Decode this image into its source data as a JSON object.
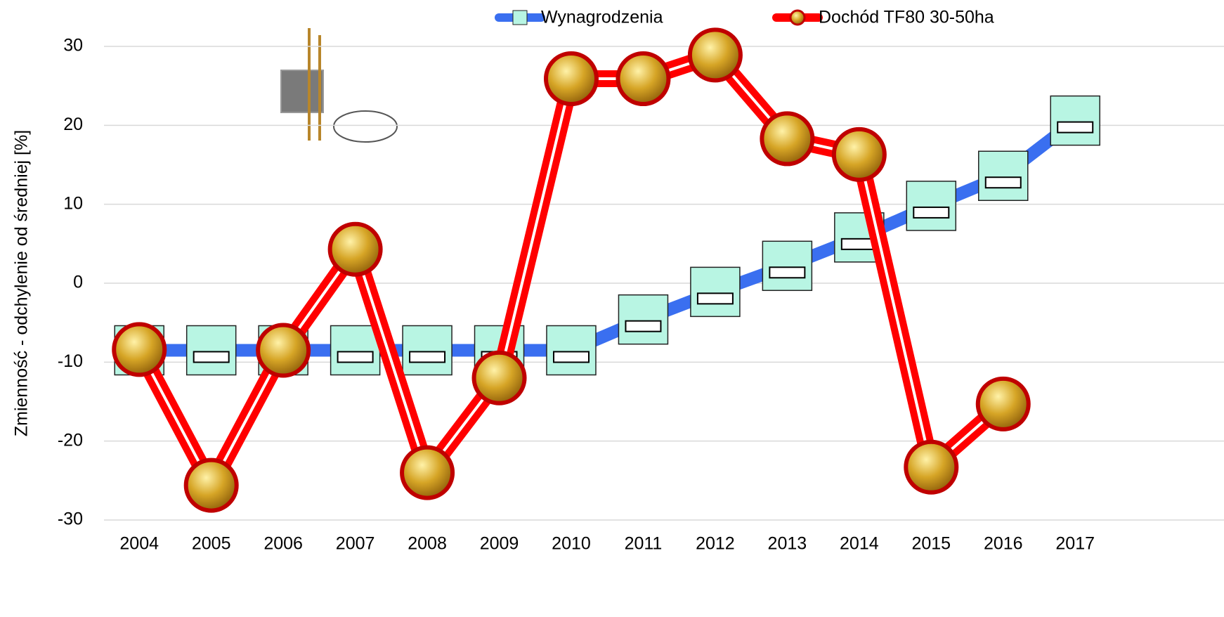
{
  "chart_data": {
    "type": "line",
    "y_label": "Zmienność - odchylenie od średniej [%]",
    "categories": [
      "2004",
      "2005",
      "2006",
      "2007",
      "2008",
      "2009",
      "2010",
      "2011",
      "2012",
      "2013",
      "2014",
      "2015",
      "2016",
      "2017"
    ],
    "series": [
      {
        "name": "Wynagrodzenia",
        "color": "#3a6ff0",
        "values": [
          -8.5,
          -8.5,
          -8.5,
          -8.5,
          -8.5,
          -8.5,
          -8.5,
          -4.6,
          -1.1,
          2.2,
          5.8,
          9.8,
          13.6,
          20.6
        ]
      },
      {
        "name": "Dochód TF80 30-50ha",
        "color": "#ff0000",
        "values": [
          -8.4,
          -25.6,
          -8.5,
          4.3,
          -24.0,
          -12.0,
          25.9,
          25.9,
          28.9,
          18.3,
          16.3,
          -23.3,
          -15.3,
          null
        ]
      }
    ],
    "ylim": [
      -30,
      30
    ],
    "yticks": [
      -30,
      -20,
      -10,
      0,
      10,
      20,
      30
    ],
    "grid": true,
    "legend": "top"
  }
}
